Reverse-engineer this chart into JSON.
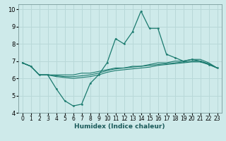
{
  "xlabel": "Humidex (Indice chaleur)",
  "ylabel": "",
  "background_color": "#ceeaea",
  "grid_color": "#b8d8d8",
  "line_color": "#1a7a6e",
  "xlim": [
    -0.5,
    23.5
  ],
  "ylim": [
    4,
    10.3
  ],
  "yticks": [
    4,
    5,
    6,
    7,
    8,
    9,
    10
  ],
  "xticks": [
    0,
    1,
    2,
    3,
    4,
    5,
    6,
    7,
    8,
    9,
    10,
    11,
    12,
    13,
    14,
    15,
    16,
    17,
    18,
    19,
    20,
    21,
    22,
    23
  ],
  "series": [
    [
      6.9,
      6.7,
      6.2,
      6.2,
      5.4,
      4.7,
      4.4,
      4.5,
      5.7,
      6.2,
      6.9,
      8.3,
      8.0,
      8.7,
      9.9,
      8.9,
      8.9,
      7.4,
      7.2,
      7.0,
      7.1,
      7.0,
      6.8,
      6.6
    ],
    [
      6.9,
      6.7,
      6.2,
      6.2,
      6.2,
      6.2,
      6.2,
      6.3,
      6.3,
      6.4,
      6.5,
      6.6,
      6.6,
      6.7,
      6.7,
      6.8,
      6.9,
      6.9,
      7.0,
      7.0,
      7.1,
      7.1,
      6.9,
      6.6
    ],
    [
      6.9,
      6.7,
      6.2,
      6.2,
      6.15,
      6.1,
      6.1,
      6.15,
      6.2,
      6.3,
      6.45,
      6.55,
      6.6,
      6.65,
      6.7,
      6.75,
      6.8,
      6.85,
      6.9,
      6.95,
      7.0,
      7.0,
      6.85,
      6.6
    ],
    [
      6.9,
      6.7,
      6.2,
      6.2,
      6.1,
      6.05,
      6.0,
      6.05,
      6.1,
      6.2,
      6.35,
      6.45,
      6.5,
      6.55,
      6.6,
      6.65,
      6.75,
      6.8,
      6.85,
      6.9,
      6.95,
      6.95,
      6.8,
      6.6
    ]
  ],
  "tick_fontsize": 5.5,
  "xlabel_fontsize": 6.5
}
